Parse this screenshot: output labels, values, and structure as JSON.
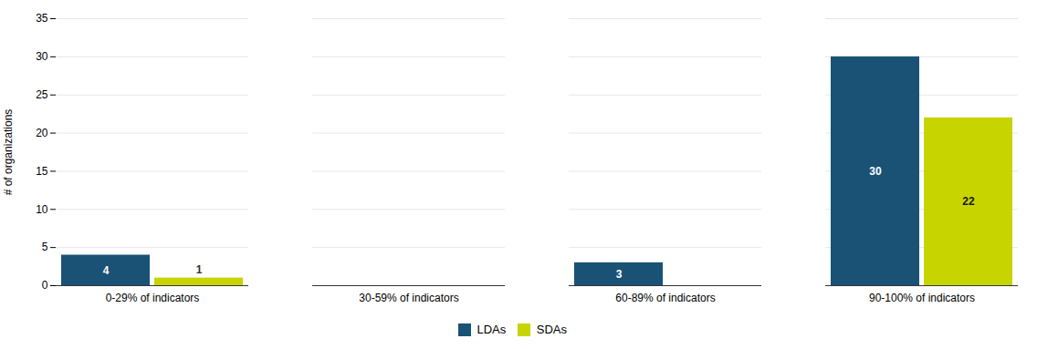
{
  "chart_data": {
    "type": "bar",
    "categories": [
      "0-29% of indicators",
      "30-59% of indicators",
      "60-89% of indicators",
      "90-100% of indicators"
    ],
    "series": [
      {
        "name": "LDAs",
        "color": "#1a5276",
        "values": [
          4,
          0,
          3,
          30
        ]
      },
      {
        "name": "SDAs",
        "color": "#c8d400",
        "values": [
          1,
          0,
          0,
          22
        ]
      }
    ],
    "ylabel": "# of organizations",
    "ylim": [
      0,
      35
    ],
    "yticks": [
      0,
      5,
      10,
      15,
      20,
      25,
      30,
      35
    ],
    "grid": true,
    "legend": "bottom",
    "data_labels": true
  }
}
